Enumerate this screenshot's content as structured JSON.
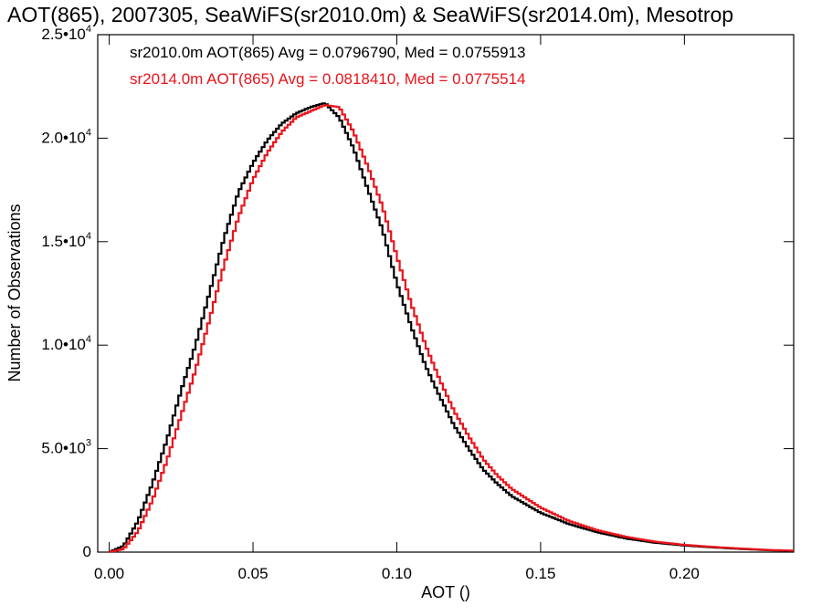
{
  "chart_data": {
    "type": "line",
    "title": "AOT(865), 2007305, SeaWiFS(sr2010.0m) & SeaWiFS(sr2014.0m), Mesotrop",
    "xlabel": "AOT ()",
    "ylabel": "Number of Observations",
    "xlim": [
      -0.004,
      0.238
    ],
    "ylim": [
      0,
      25000
    ],
    "x_ticks": [
      {
        "value": 0.0,
        "label": "0.00"
      },
      {
        "value": 0.05,
        "label": "0.05"
      },
      {
        "value": 0.1,
        "label": "0.10"
      },
      {
        "value": 0.15,
        "label": "0.15"
      },
      {
        "value": 0.2,
        "label": "0.20"
      }
    ],
    "y_ticks": [
      {
        "value": 0,
        "mantissa": "0",
        "exponent": ""
      },
      {
        "value": 5000,
        "mantissa": "5.0•10",
        "exponent": "3"
      },
      {
        "value": 10000,
        "mantissa": "1.0•10",
        "exponent": "4"
      },
      {
        "value": 15000,
        "mantissa": "1.5•10",
        "exponent": "4"
      },
      {
        "value": 20000,
        "mantissa": "2.0•10",
        "exponent": "4"
      },
      {
        "value": 25000,
        "mantissa": "2.5•10",
        "exponent": "4"
      }
    ],
    "grid": false,
    "legend_position": "top-left",
    "series": [
      {
        "legend": "sr2010.0m AOT(865) Avg = 0.0796790, Med = 0.0755913",
        "color": "#000000",
        "x": [
          0.0,
          0.005,
          0.01,
          0.015,
          0.02,
          0.025,
          0.03,
          0.035,
          0.04,
          0.045,
          0.05,
          0.055,
          0.06,
          0.065,
          0.07,
          0.075,
          0.08,
          0.085,
          0.09,
          0.095,
          0.1,
          0.105,
          0.11,
          0.115,
          0.12,
          0.125,
          0.13,
          0.135,
          0.14,
          0.15,
          0.16,
          0.17,
          0.18,
          0.19,
          0.2,
          0.21,
          0.22,
          0.23,
          0.238
        ],
        "y": [
          0,
          300,
          1500,
          3300,
          5400,
          7800,
          10000,
          12600,
          15200,
          17400,
          18800,
          19900,
          20700,
          21200,
          21500,
          21700,
          21000,
          19500,
          17500,
          15600,
          13000,
          10900,
          9000,
          7500,
          6100,
          5000,
          4000,
          3300,
          2700,
          1900,
          1350,
          950,
          650,
          450,
          320,
          230,
          150,
          90,
          60
        ]
      },
      {
        "legend": "sr2014.0m AOT(865) Avg = 0.0818410, Med = 0.0775514",
        "color": "#e8141b",
        "x": [
          0.0,
          0.005,
          0.01,
          0.015,
          0.02,
          0.025,
          0.03,
          0.035,
          0.04,
          0.045,
          0.05,
          0.055,
          0.06,
          0.065,
          0.07,
          0.075,
          0.08,
          0.085,
          0.09,
          0.095,
          0.1,
          0.105,
          0.11,
          0.115,
          0.12,
          0.125,
          0.13,
          0.135,
          0.14,
          0.15,
          0.16,
          0.17,
          0.18,
          0.19,
          0.2,
          0.21,
          0.22,
          0.23,
          0.238
        ],
        "y": [
          0,
          150,
          1000,
          2500,
          4400,
          6600,
          8800,
          11300,
          13900,
          16200,
          18000,
          19300,
          20300,
          21000,
          21300,
          21600,
          21500,
          20300,
          18600,
          16700,
          14300,
          12000,
          10000,
          8300,
          6800,
          5600,
          4500,
          3700,
          3050,
          2150,
          1500,
          1050,
          730,
          500,
          350,
          250,
          170,
          100,
          70
        ]
      }
    ]
  }
}
